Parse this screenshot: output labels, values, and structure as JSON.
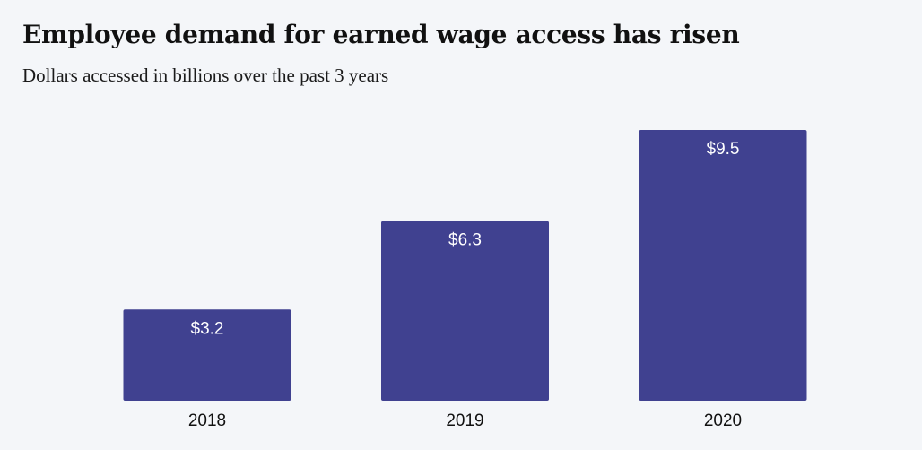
{
  "chart_data": {
    "type": "bar",
    "title": "Employee demand for earned wage access has risen",
    "subtitle": "Dollars accessed in billions over the past 3 years",
    "categories": [
      "2018",
      "2019",
      "2020"
    ],
    "values": [
      3.2,
      6.3,
      9.5
    ],
    "value_labels": [
      "$3.2",
      "$6.3",
      "$9.5"
    ],
    "xlabel": "",
    "ylabel": "",
    "ylim": [
      0,
      9.5
    ],
    "grid": false,
    "legend": "none",
    "bar_color": "#404190"
  }
}
